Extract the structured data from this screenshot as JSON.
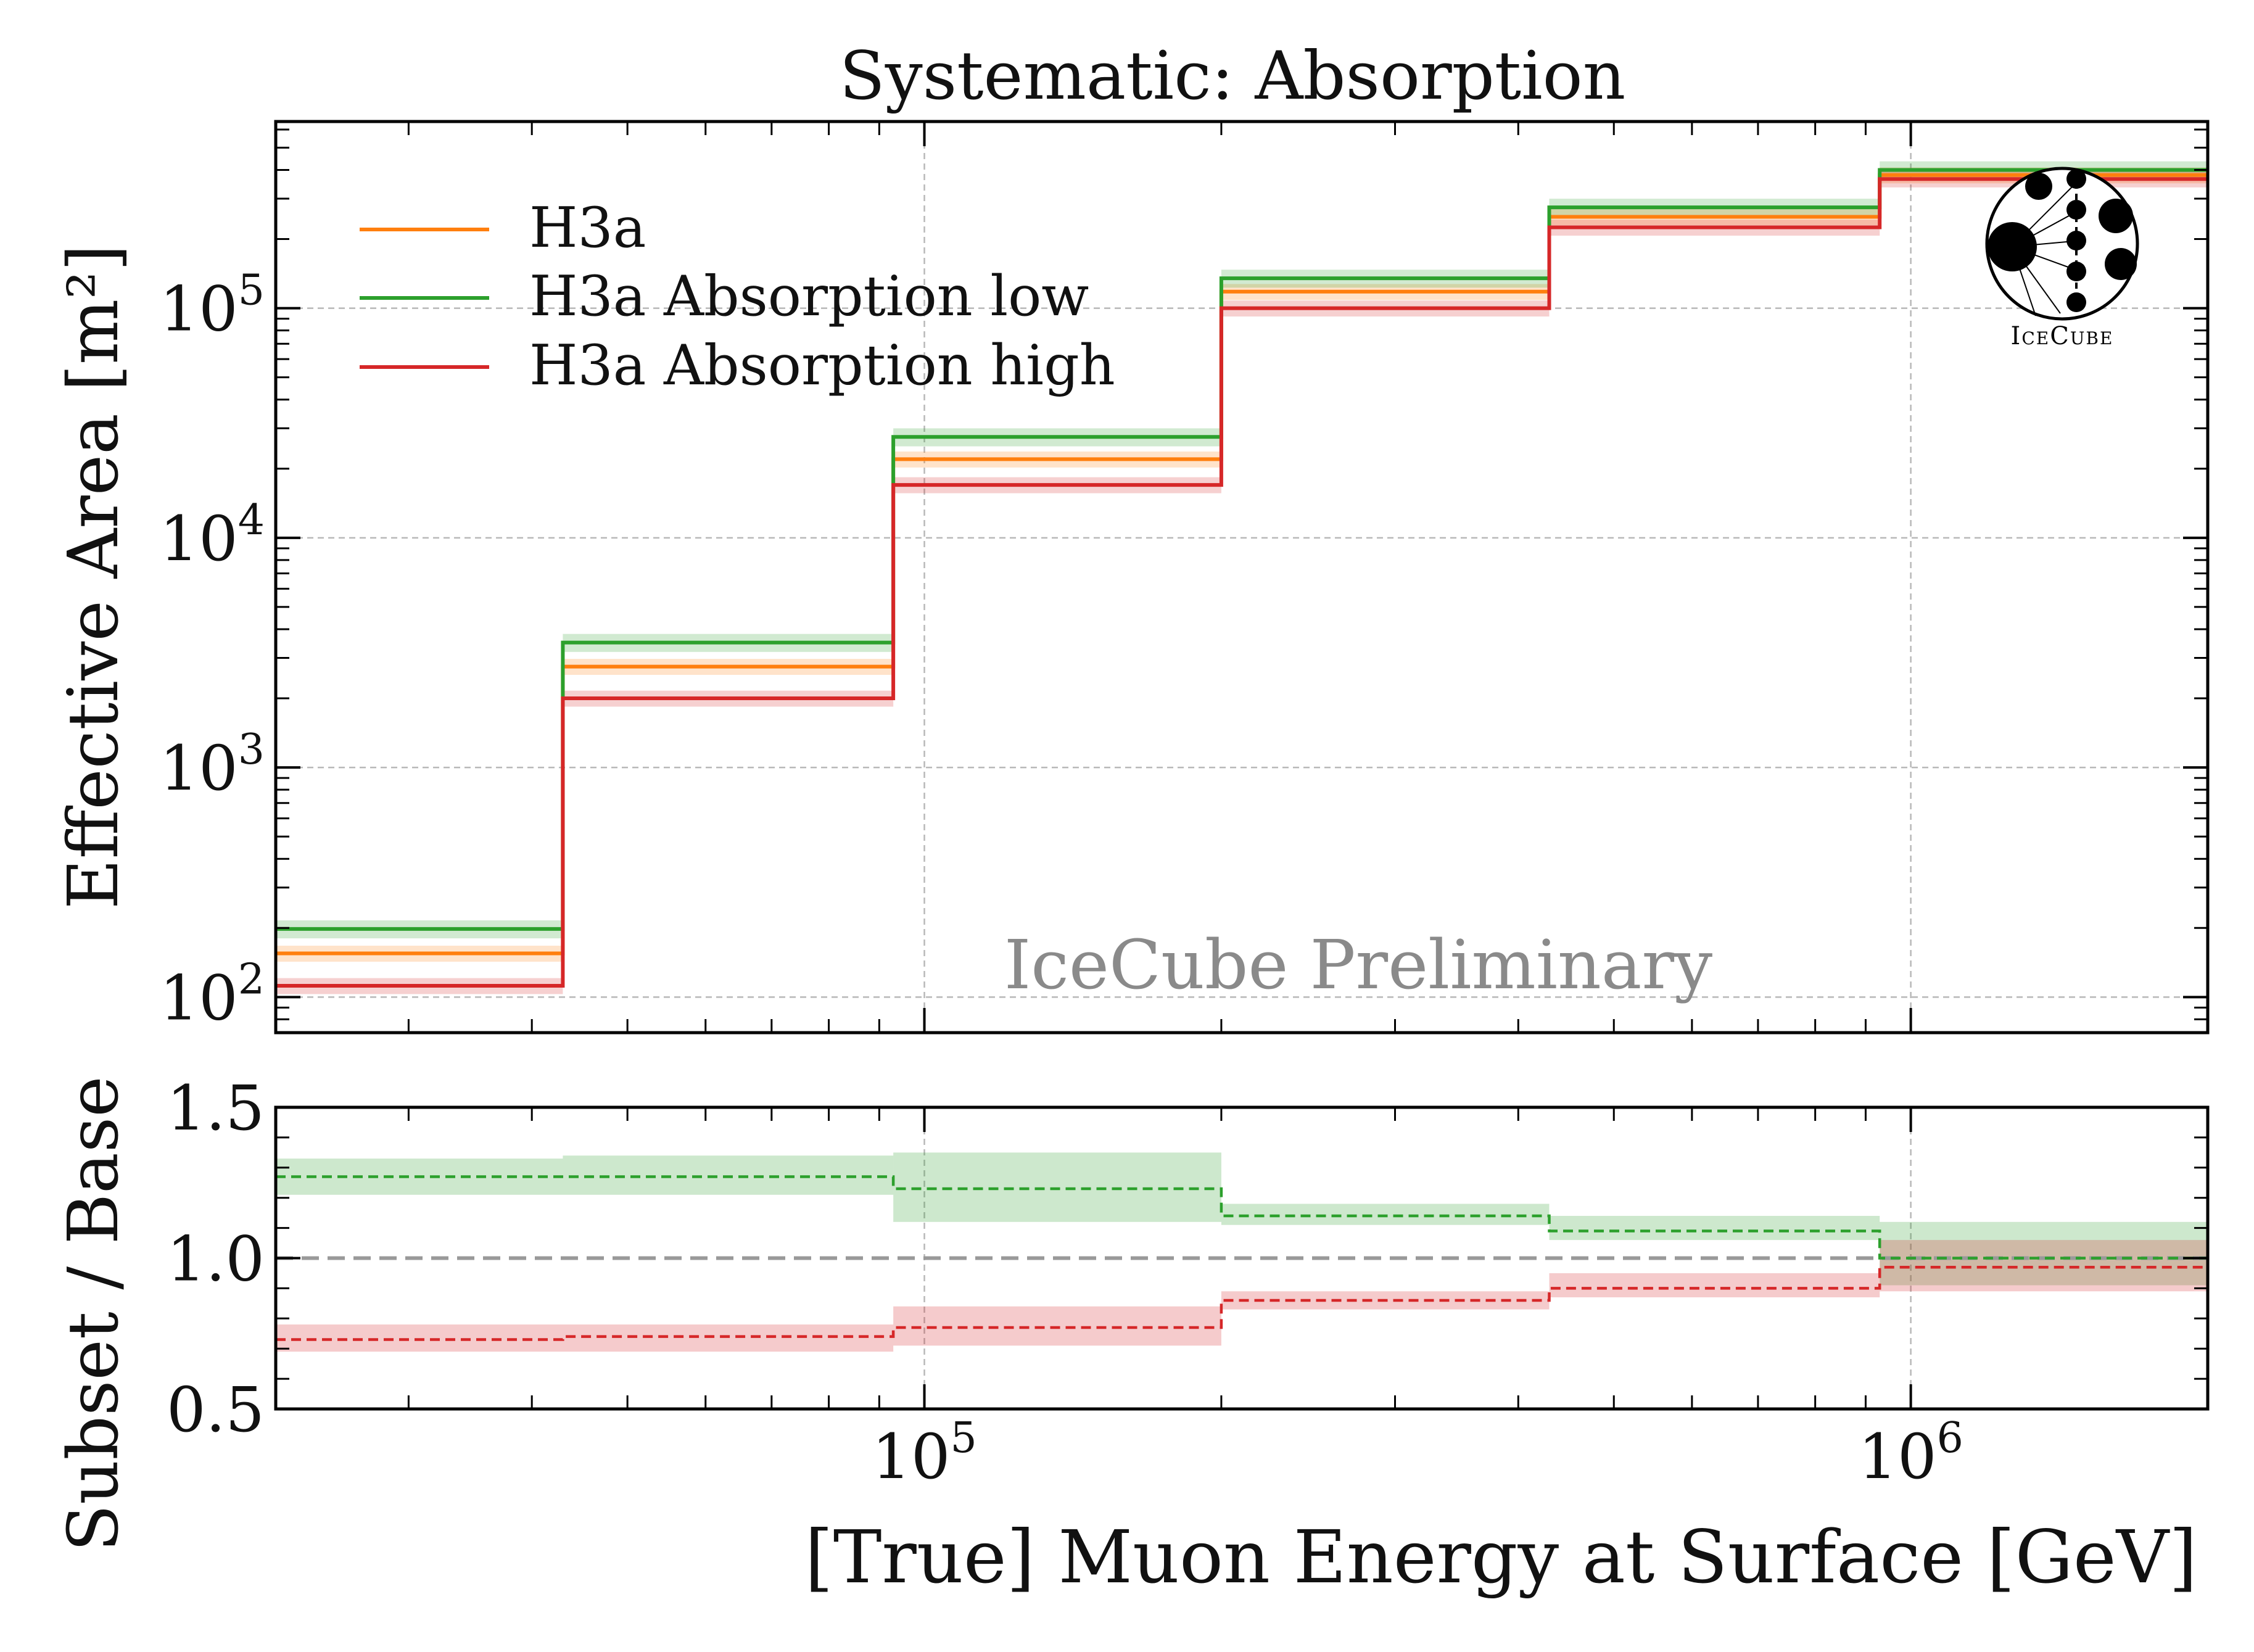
{
  "chart_data": [
    {
      "type": "line",
      "title": "Systematic: Absorption",
      "ylabel": "Effective Area [m²]",
      "xscale": "log",
      "yscale": "log",
      "xlim": [
        22000,
        2000000
      ],
      "ylim": [
        70,
        650000
      ],
      "grid": true,
      "legend_position": "top-left",
      "watermark": "IceCube Preliminary",
      "logo_text": "IceCube",
      "bin_edges": [
        22000,
        43000,
        93000,
        200000,
        430000,
        930000,
        2000000
      ],
      "y_ticks": [
        {
          "value": 100,
          "base": "10",
          "exp": "2"
        },
        {
          "value": 1000,
          "base": "10",
          "exp": "3"
        },
        {
          "value": 10000,
          "base": "10",
          "exp": "4"
        },
        {
          "value": 100000,
          "base": "10",
          "exp": "5"
        }
      ],
      "series": [
        {
          "name": "H3a",
          "color": "#ff7f0e",
          "values": [
            155,
            2750,
            22000,
            118000,
            250000,
            380000
          ],
          "band_rel": 0.08
        },
        {
          "name": "H3a Absorption low",
          "color": "#2ca02c",
          "values": [
            198,
            3500,
            27500,
            135000,
            275000,
            400000
          ],
          "band_rel": 0.09
        },
        {
          "name": "H3a Absorption high",
          "color": "#d62728",
          "values": [
            112,
            2000,
            17000,
            100000,
            225000,
            365000
          ],
          "band_rel": 0.08
        }
      ]
    },
    {
      "type": "line",
      "xlabel": "[True] Muon Energy at Surface [GeV]",
      "ylabel": "Subset / Base",
      "xscale": "log",
      "xlim": [
        22000,
        2000000
      ],
      "ylim": [
        0.5,
        1.5
      ],
      "grid": true,
      "reference_line": 1.0,
      "bin_edges": [
        22000,
        43000,
        93000,
        200000,
        430000,
        930000,
        2000000
      ],
      "x_ticks": [
        {
          "value": 100000,
          "base": "10",
          "exp": "5"
        },
        {
          "value": 1000000,
          "base": "10",
          "exp": "6"
        }
      ],
      "y_ticks": [
        {
          "value": 0.5,
          "label": "0.5"
        },
        {
          "value": 1.0,
          "label": "1.0"
        },
        {
          "value": 1.5,
          "label": "1.5"
        }
      ],
      "series": [
        {
          "color": "#2ca02c",
          "values": [
            1.27,
            1.27,
            1.23,
            1.14,
            1.09,
            1.0
          ],
          "band_lo": [
            1.21,
            1.21,
            1.12,
            1.11,
            1.06,
            0.91
          ],
          "band_hi": [
            1.33,
            1.34,
            1.35,
            1.18,
            1.14,
            1.12
          ]
        },
        {
          "color": "#d62728",
          "values": [
            0.73,
            0.74,
            0.77,
            0.86,
            0.9,
            0.97
          ],
          "band_lo": [
            0.69,
            0.69,
            0.71,
            0.83,
            0.87,
            0.89
          ],
          "band_hi": [
            0.78,
            0.78,
            0.84,
            0.89,
            0.95,
            1.06
          ]
        }
      ]
    }
  ]
}
